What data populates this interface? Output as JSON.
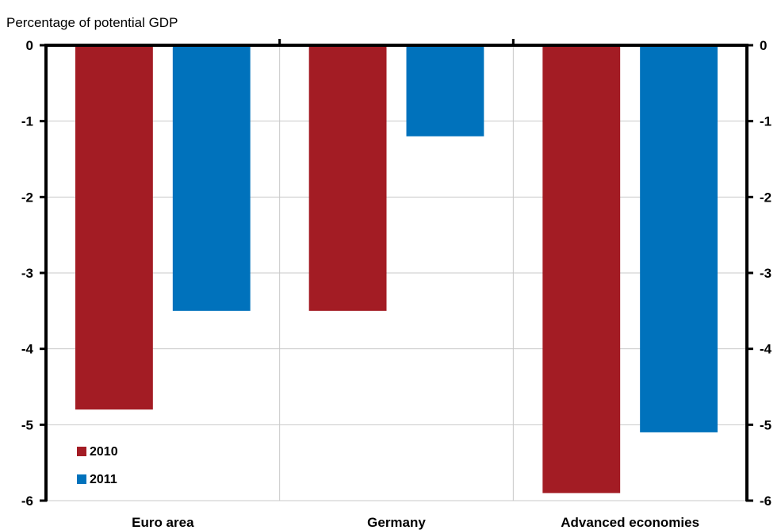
{
  "chart_data": {
    "type": "bar",
    "ylabel": "Percentage of potential GDP",
    "categories": [
      "Euro area",
      "Germany",
      "Advanced economies"
    ],
    "series": [
      {
        "name": "2010",
        "color": "#A31C24",
        "values": [
          -4.8,
          -3.5,
          -5.9
        ]
      },
      {
        "name": "2011",
        "color": "#0072BC",
        "values": [
          -3.5,
          -1.2,
          -5.1
        ]
      }
    ],
    "ylim": [
      -6,
      0
    ],
    "yticks": [
      0,
      -1,
      -2,
      -3,
      -4,
      -5,
      -6
    ],
    "ytick_labels": [
      "0",
      "-1",
      "-2",
      "-3",
      "-4",
      "-5",
      "-6"
    ],
    "grid": true,
    "secondary_axis": true,
    "legend_position": "bottom-left"
  }
}
